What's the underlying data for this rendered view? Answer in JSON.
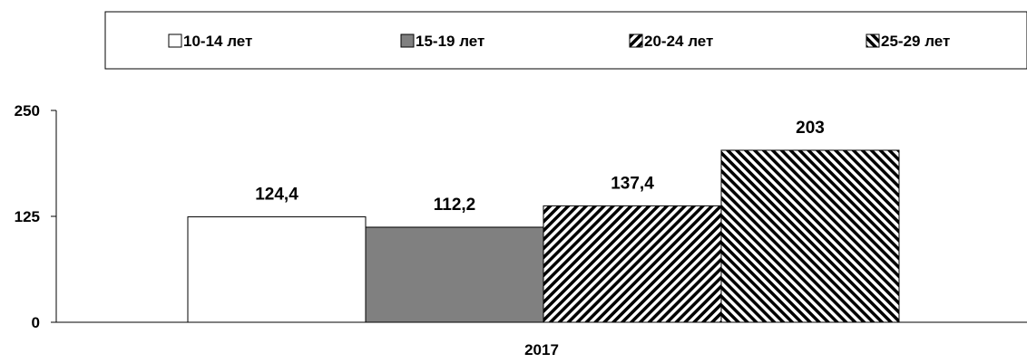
{
  "chart_data": {
    "type": "bar",
    "categories": [
      "2017"
    ],
    "series": [
      {
        "name": "10-14 лет",
        "values": [
          124.4
        ],
        "value_labels": [
          "124,4"
        ],
        "fill": "white"
      },
      {
        "name": "15-19 лет",
        "values": [
          112.2
        ],
        "value_labels": [
          "112,2"
        ],
        "fill": "gray"
      },
      {
        "name": "20-24 лет",
        "values": [
          137.4
        ],
        "value_labels": [
          "137,4"
        ],
        "fill": "hatch-forward"
      },
      {
        "name": "25-29 лет",
        "values": [
          203
        ],
        "value_labels": [
          "203"
        ],
        "fill": "hatch-back"
      }
    ],
    "yticks": [
      "0",
      "125",
      "250"
    ],
    "ylim": [
      0,
      250
    ],
    "title": "",
    "xlabel": "",
    "ylabel": "",
    "legend_position": "top",
    "grid": false
  },
  "colors": {
    "gray_fill": "#808080",
    "stroke": "#000000",
    "background": "#ffffff"
  }
}
